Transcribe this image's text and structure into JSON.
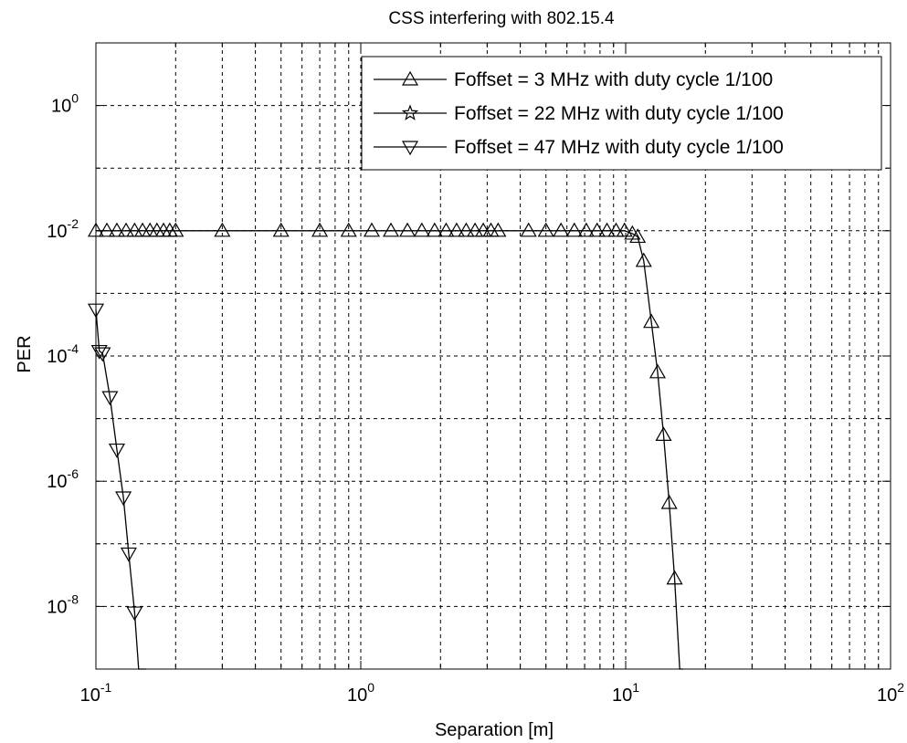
{
  "chart_data": {
    "type": "line",
    "title": "CSS interfering with 802.15.4",
    "xlabel": "Separation [m]",
    "ylabel": "PER",
    "xscale": "log",
    "yscale": "log",
    "xlim": [
      0.1,
      100
    ],
    "ylim": [
      1e-09,
      10
    ],
    "grid": true,
    "legend_position": "top-right",
    "x_ticks": [
      {
        "value": 0.1,
        "base": "10",
        "exp": "-1"
      },
      {
        "value": 1,
        "base": "10",
        "exp": "0"
      },
      {
        "value": 10,
        "base": "10",
        "exp": "1"
      },
      {
        "value": 100,
        "base": "10",
        "exp": "2"
      }
    ],
    "y_ticks": [
      {
        "value": 1,
        "base": "10",
        "exp": "0"
      },
      {
        "value": 0.01,
        "base": "10",
        "exp": "-2"
      },
      {
        "value": 0.0001,
        "base": "10",
        "exp": "-4"
      },
      {
        "value": 1e-06,
        "base": "10",
        "exp": "-6"
      },
      {
        "value": 1e-08,
        "base": "10",
        "exp": "-8"
      }
    ],
    "series": [
      {
        "name": "Foffset = 3 MHz with duty cycle 1/100",
        "marker": "triangle-up",
        "x": [
          0.1,
          0.11,
          0.12,
          0.13,
          0.14,
          0.15,
          0.16,
          0.17,
          0.18,
          0.19,
          0.2,
          0.3,
          0.5,
          0.7,
          0.9,
          1.1,
          1.3,
          1.5,
          1.7,
          1.9,
          2.1,
          2.3,
          2.5,
          2.7,
          2.9,
          3.1,
          3.3,
          4.3,
          5.0,
          5.7,
          6.4,
          7.1,
          7.8,
          8.5,
          9.2,
          9.9,
          10.6,
          11.1,
          11.7,
          12.5,
          13.2,
          13.9,
          14.6,
          15.3,
          16.0,
          16.5
        ],
        "y": [
          0.01,
          0.01,
          0.01,
          0.01,
          0.01,
          0.01,
          0.01,
          0.01,
          0.01,
          0.01,
          0.01,
          0.01,
          0.01,
          0.01,
          0.01,
          0.01,
          0.01,
          0.01,
          0.01,
          0.01,
          0.01,
          0.01,
          0.01,
          0.01,
          0.01,
          0.01,
          0.01,
          0.01,
          0.01,
          0.01,
          0.01,
          0.01,
          0.01,
          0.01,
          0.01,
          0.01,
          0.009,
          0.008,
          0.0033,
          0.00035,
          5.5e-05,
          5.5e-06,
          4.5e-07,
          2.8e-08,
          1e-09,
          1e-09
        ]
      },
      {
        "name": "Foffset = 22 MHz with duty cycle 1/100",
        "marker": "star",
        "x": [],
        "y": []
      },
      {
        "name": "Foffset = 47 MHz with duty cycle 1/100",
        "marker": "triangle-down",
        "x": [
          0.1,
          0.103,
          0.106,
          0.113,
          0.12,
          0.127,
          0.133,
          0.14,
          0.145,
          0.15,
          0.155
        ],
        "y": [
          0.00055,
          0.00012,
          0.00011,
          2.2e-05,
          3.2e-06,
          5.5e-07,
          7e-08,
          8e-09,
          1e-09,
          1e-09,
          1e-09
        ]
      }
    ]
  }
}
